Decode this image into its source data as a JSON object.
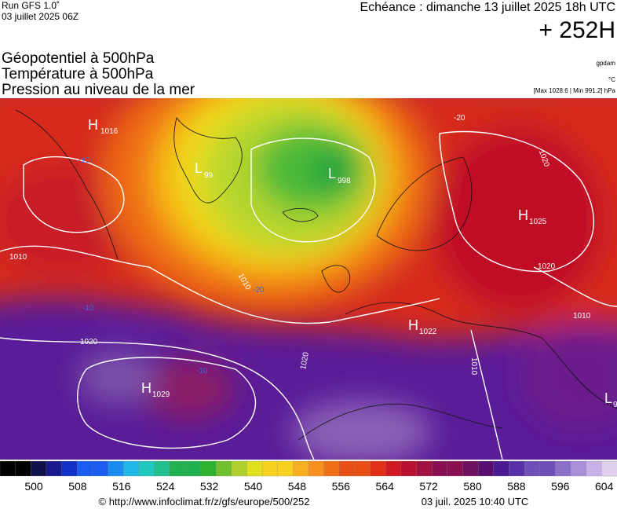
{
  "header": {
    "run": "Run GFS 1.0˚",
    "run_date": "03 juillet 2025 06Z",
    "valid": "Echéance : dimanche 13 juillet 2025 18h UTC",
    "lead": "+ 252H",
    "lines": [
      "Géopotentiel à 500hPa",
      "Température à 500hPa",
      "Pression au niveau de la mer"
    ],
    "unit_geo": "gpdam",
    "unit_temp": "°C",
    "pressure_range": "[Max 1028.6 | Min 991.2] hPa"
  },
  "centers": [
    {
      "letter": "H",
      "value": "1016"
    },
    {
      "letter": "L",
      "value": "99"
    },
    {
      "letter": "L",
      "value": "998"
    },
    {
      "letter": "H",
      "value": "1025"
    },
    {
      "letter": "H",
      "value": "1022"
    },
    {
      "letter": "H",
      "value": "1029"
    },
    {
      "letter": "L",
      "value": "9"
    }
  ],
  "contour_labels": [
    "1010",
    "1020",
    "1020",
    "1020",
    "1010",
    "1010",
    "1010",
    "-10",
    "-10",
    "-10",
    "-20",
    "-20",
    "1020"
  ],
  "colorbar": {
    "labels": [
      "500",
      "508",
      "516",
      "524",
      "532",
      "540",
      "548",
      "556",
      "564",
      "572",
      "580",
      "588",
      "596",
      "604"
    ]
  },
  "footer": {
    "source": "© http://www.infoclimat.fr/z/gfs/europe/500/252",
    "generated": "03 juil. 2025 10:40 UTC"
  }
}
